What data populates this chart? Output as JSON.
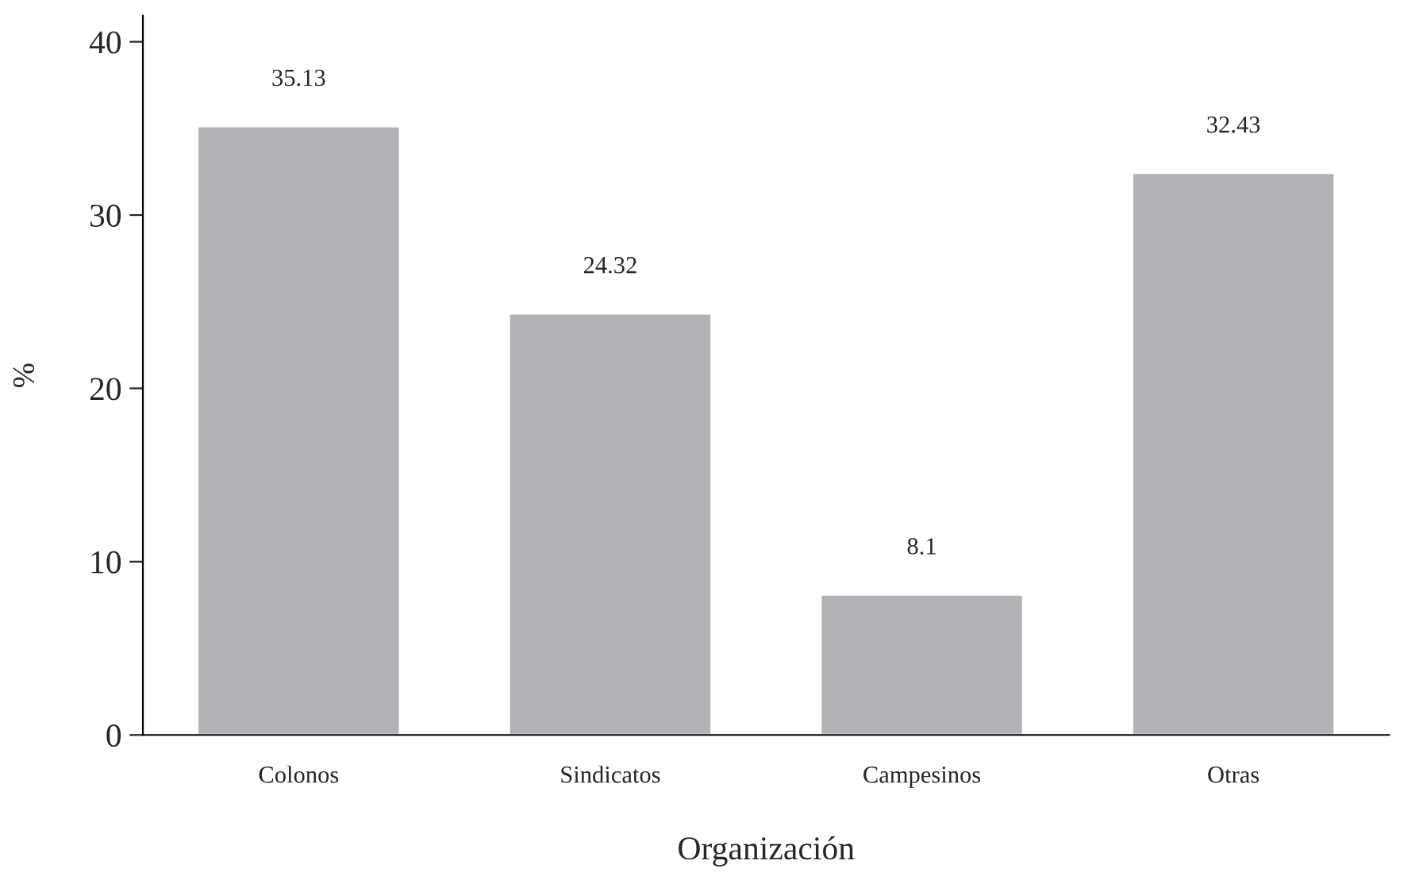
{
  "chart_data": {
    "type": "bar",
    "xlabel": "Organización",
    "ylabel": "%",
    "categories": [
      "Colonos",
      "Sindicatos",
      "Campesinos",
      "Otras"
    ],
    "values": [
      35.13,
      24.32,
      8.1,
      32.43
    ],
    "color": "#b1b2b6",
    "ylim": [
      0,
      41.5
    ],
    "yticks": [
      0,
      10,
      20,
      30,
      40
    ],
    "grid": false,
    "data_labels": true
  }
}
